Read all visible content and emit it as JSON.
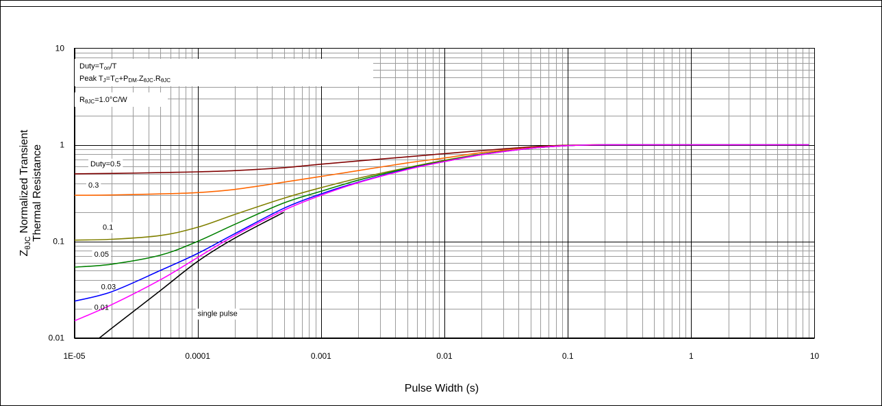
{
  "chart_data": {
    "type": "line",
    "x_scale": "log",
    "y_scale": "log",
    "xlim": [
      1e-05,
      10
    ],
    "ylim": [
      0.01,
      10
    ],
    "xlabel": "Pulse Width (s)",
    "ylabel": {
      "line1_prefix": "Z",
      "line1_sub": "θJC",
      "line1_rest": " Normalized Transient",
      "line2": "Thermal Resistance"
    },
    "x_ticks": [
      {
        "value": 1e-05,
        "label": "1E-05"
      },
      {
        "value": 0.0001,
        "label": "0.0001"
      },
      {
        "value": 0.001,
        "label": "0.001"
      },
      {
        "value": 0.01,
        "label": "0.01"
      },
      {
        "value": 0.1,
        "label": "0.1"
      },
      {
        "value": 1,
        "label": "1"
      },
      {
        "value": 10,
        "label": "10"
      }
    ],
    "y_ticks": [
      {
        "value": 0.01,
        "label": "0.01"
      },
      {
        "value": 0.1,
        "label": "0.1"
      },
      {
        "value": 1,
        "label": "1"
      },
      {
        "value": 10,
        "label": "10"
      }
    ],
    "grid": true,
    "annotation": {
      "duty_label": "Duty=T",
      "duty_sub": "on",
      "duty_tail": "/T",
      "peak": [
        {
          "t": "Peak T",
          "s": false
        },
        {
          "t": "J",
          "s": true
        },
        {
          "t": "=T",
          "s": false
        },
        {
          "t": "C",
          "s": true
        },
        {
          "t": "+P",
          "s": false
        },
        {
          "t": "DM",
          "s": true
        },
        {
          "t": ".Z",
          "s": false
        },
        {
          "t": "θJC",
          "s": true
        },
        {
          "t": ".R",
          "s": false
        },
        {
          "t": "θJC",
          "s": true
        }
      ],
      "r_label": "R",
      "r_sub": "θJC",
      "r_value": "=1.0°C/W"
    },
    "series": [
      {
        "label": "Duty=0.5",
        "color": "#800000",
        "points": [
          [
            1e-05,
            0.5
          ],
          [
            2e-05,
            0.505
          ],
          [
            5e-05,
            0.515
          ],
          [
            0.0001,
            0.525
          ],
          [
            0.0002,
            0.54
          ],
          [
            0.0005,
            0.58
          ],
          [
            0.001,
            0.63
          ],
          [
            0.002,
            0.68
          ],
          [
            0.005,
            0.75
          ],
          [
            0.01,
            0.81
          ],
          [
            0.02,
            0.87
          ],
          [
            0.05,
            0.95
          ],
          [
            0.1,
            0.99
          ],
          [
            0.2,
            1.0
          ],
          [
            1,
            1.0
          ],
          [
            9,
            1.0
          ]
        ]
      },
      {
        "label": "0.3",
        "color": "#ff6600",
        "points": [
          [
            1e-05,
            0.3
          ],
          [
            2e-05,
            0.302
          ],
          [
            5e-05,
            0.31
          ],
          [
            0.0001,
            0.32
          ],
          [
            0.0002,
            0.345
          ],
          [
            0.0005,
            0.41
          ],
          [
            0.001,
            0.47
          ],
          [
            0.002,
            0.54
          ],
          [
            0.005,
            0.65
          ],
          [
            0.01,
            0.73
          ],
          [
            0.02,
            0.83
          ],
          [
            0.05,
            0.93
          ],
          [
            0.1,
            0.985
          ],
          [
            0.2,
            1.0
          ],
          [
            1,
            1.0
          ],
          [
            9,
            1.0
          ]
        ]
      },
      {
        "label": "0.1",
        "color": "#808000",
        "points": [
          [
            1e-05,
            0.103
          ],
          [
            2e-05,
            0.105
          ],
          [
            5e-05,
            0.115
          ],
          [
            0.0001,
            0.14
          ],
          [
            0.0002,
            0.19
          ],
          [
            0.0005,
            0.28
          ],
          [
            0.001,
            0.36
          ],
          [
            0.002,
            0.45
          ],
          [
            0.005,
            0.58
          ],
          [
            0.01,
            0.69
          ],
          [
            0.02,
            0.8
          ],
          [
            0.05,
            0.92
          ],
          [
            0.1,
            0.98
          ],
          [
            0.2,
            1.0
          ],
          [
            1,
            1.0
          ],
          [
            9,
            1.0
          ]
        ]
      },
      {
        "label": "0.05",
        "color": "#008000",
        "points": [
          [
            1e-05,
            0.054
          ],
          [
            2e-05,
            0.058
          ],
          [
            5e-05,
            0.072
          ],
          [
            0.0001,
            0.1
          ],
          [
            0.0002,
            0.15
          ],
          [
            0.0005,
            0.25
          ],
          [
            0.001,
            0.33
          ],
          [
            0.002,
            0.43
          ],
          [
            0.005,
            0.57
          ],
          [
            0.01,
            0.68
          ],
          [
            0.02,
            0.8
          ],
          [
            0.05,
            0.92
          ],
          [
            0.1,
            0.98
          ],
          [
            0.2,
            1.0
          ],
          [
            1,
            1.0
          ],
          [
            9,
            1.0
          ]
        ]
      },
      {
        "label": "0.03",
        "color": "#0000ff",
        "points": [
          [
            1e-05,
            0.024
          ],
          [
            2e-05,
            0.03
          ],
          [
            5e-05,
            0.05
          ],
          [
            0.0001,
            0.075
          ],
          [
            0.0002,
            0.12
          ],
          [
            0.0005,
            0.22
          ],
          [
            0.001,
            0.31
          ],
          [
            0.002,
            0.41
          ],
          [
            0.005,
            0.56
          ],
          [
            0.01,
            0.67
          ],
          [
            0.02,
            0.79
          ],
          [
            0.05,
            0.92
          ],
          [
            0.1,
            0.98
          ],
          [
            0.2,
            1.0
          ],
          [
            1,
            1.0
          ],
          [
            9,
            1.0
          ]
        ]
      },
      {
        "label": "0.01",
        "color": "#ff00ff",
        "points": [
          [
            1e-05,
            0.015
          ],
          [
            2e-05,
            0.022
          ],
          [
            5e-05,
            0.04
          ],
          [
            0.0001,
            0.068
          ],
          [
            0.0002,
            0.115
          ],
          [
            0.0005,
            0.21
          ],
          [
            0.001,
            0.3
          ],
          [
            0.002,
            0.405
          ],
          [
            0.005,
            0.555
          ],
          [
            0.01,
            0.67
          ],
          [
            0.02,
            0.79
          ],
          [
            0.05,
            0.92
          ],
          [
            0.1,
            0.98
          ],
          [
            0.2,
            1.0
          ],
          [
            1,
            1.0
          ],
          [
            9,
            1.0
          ]
        ]
      },
      {
        "label": "single pulse",
        "color": "#000000",
        "points": [
          [
            1.6e-05,
            0.01
          ],
          [
            2e-05,
            0.0125
          ],
          [
            5e-05,
            0.031
          ],
          [
            0.0001,
            0.062
          ],
          [
            0.0002,
            0.108
          ],
          [
            0.0005,
            0.2
          ]
        ]
      }
    ],
    "series_label_positions": [
      {
        "label": "Duty=0.5",
        "x": 1.35e-05,
        "y": 0.6
      },
      {
        "label": "0.3",
        "x": 1.3e-05,
        "y": 0.36
      },
      {
        "label": "0.1",
        "x": 1.7e-05,
        "y": 0.132
      },
      {
        "label": "0.05",
        "x": 1.45e-05,
        "y": 0.069
      },
      {
        "label": "0.03",
        "x": 1.65e-05,
        "y": 0.032
      },
      {
        "label": "0.01",
        "x": 1.45e-05,
        "y": 0.0195
      },
      {
        "label": "single pulse",
        "x": 0.0001,
        "y": 0.0168
      }
    ]
  }
}
